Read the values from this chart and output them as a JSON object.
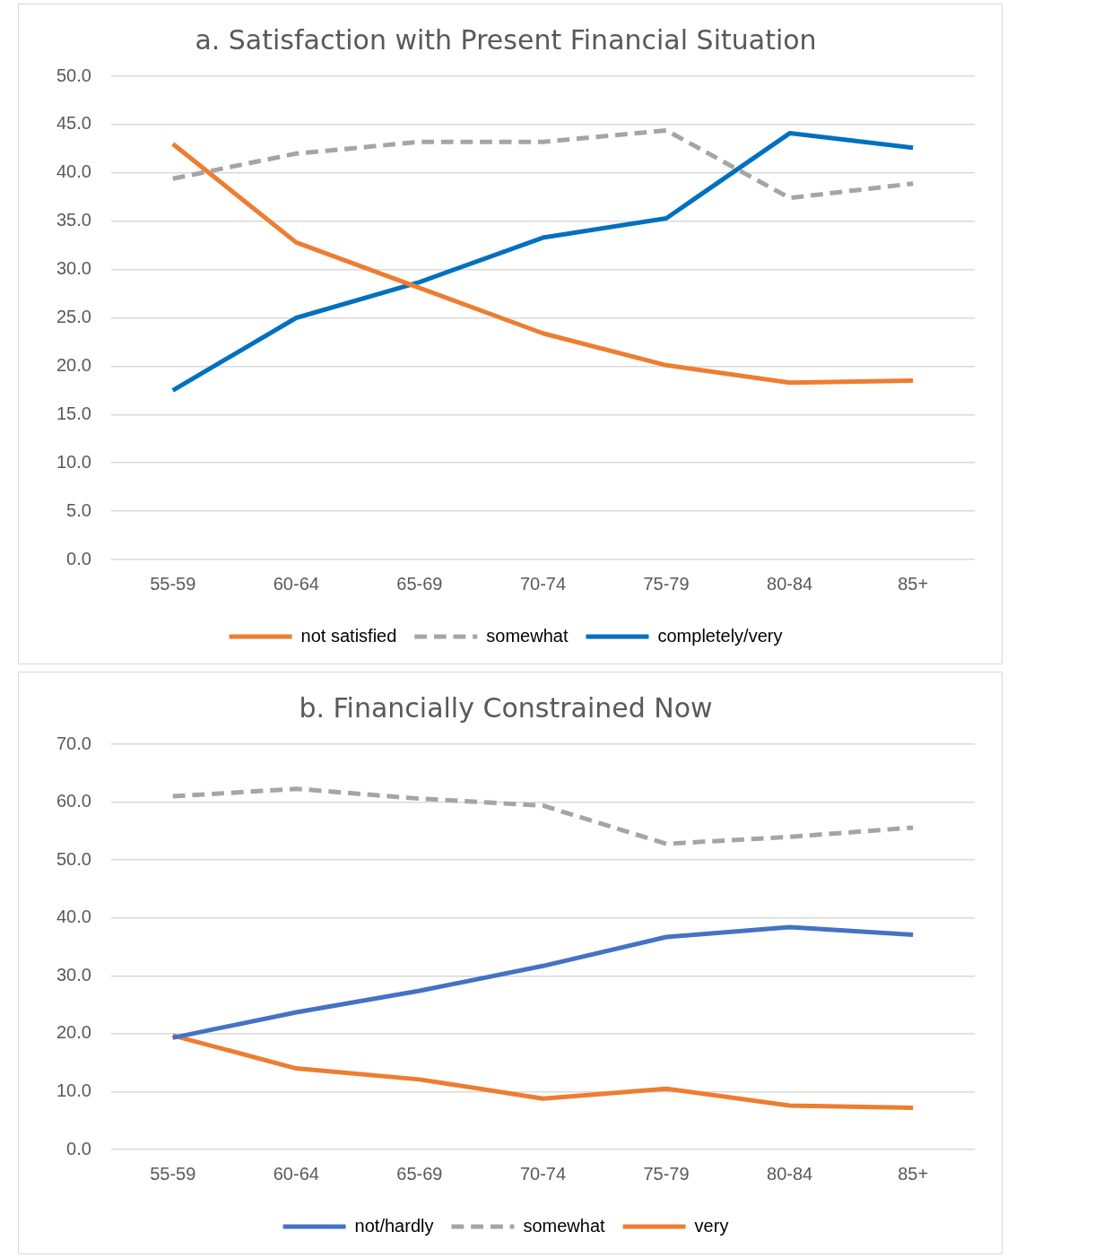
{
  "chart_data": [
    {
      "type": "line",
      "title": "a. Satisfaction with Present Financial Situation",
      "categories": [
        "55-59",
        "60-64",
        "65-69",
        "70-74",
        "75-79",
        "80-84",
        "85+"
      ],
      "ylim": [
        0,
        50
      ],
      "yticks": [
        {
          "value": 0,
          "label": "0.0"
        },
        {
          "value": 5,
          "label": "5.0"
        },
        {
          "value": 10,
          "label": "10.0"
        },
        {
          "value": 15,
          "label": "15.0"
        },
        {
          "value": 20,
          "label": "20.0"
        },
        {
          "value": 25,
          "label": "25.0"
        },
        {
          "value": 30,
          "label": "30.0"
        },
        {
          "value": 35,
          "label": "35.0"
        },
        {
          "value": 40,
          "label": "40.0"
        },
        {
          "value": 45,
          "label": "45.0"
        },
        {
          "value": 50,
          "label": "50.0"
        }
      ],
      "grid": "y",
      "legend": "bottom",
      "marker": "none",
      "series": [
        {
          "name": "not satisfied",
          "color": "#ed7d31",
          "line_style": "solid",
          "values": [
            43.0,
            32.8,
            28.1,
            23.4,
            20.1,
            18.3,
            18.5
          ]
        },
        {
          "name": "somewhat",
          "color": "#a5a5a5",
          "line_style": "dashed",
          "values": [
            39.4,
            42.0,
            43.2,
            43.2,
            44.4,
            37.4,
            38.9
          ]
        },
        {
          "name": "completely/very",
          "color": "#0070c0",
          "line_style": "solid",
          "values": [
            17.5,
            25.0,
            28.7,
            33.3,
            35.3,
            44.1,
            42.6
          ]
        }
      ]
    },
    {
      "type": "line",
      "title": "b. Financially Constrained Now",
      "categories": [
        "55-59",
        "60-64",
        "65-69",
        "70-74",
        "75-79",
        "80-84",
        "85+"
      ],
      "ylim": [
        0,
        70
      ],
      "yticks": [
        {
          "value": 0,
          "label": "0.0"
        },
        {
          "value": 10,
          "label": "10.0"
        },
        {
          "value": 20,
          "label": "20.0"
        },
        {
          "value": 30,
          "label": "30.0"
        },
        {
          "value": 40,
          "label": "40.0"
        },
        {
          "value": 50,
          "label": "50.0"
        },
        {
          "value": 60,
          "label": "60.0"
        },
        {
          "value": 70,
          "label": "70.0"
        }
      ],
      "grid": "y",
      "legend": "bottom",
      "marker": "none",
      "series": [
        {
          "name": "not/hardly",
          "color": "#4472c4",
          "line_style": "solid",
          "values": [
            19.3,
            23.7,
            27.4,
            31.7,
            36.7,
            38.4,
            37.1
          ]
        },
        {
          "name": "somewhat",
          "color": "#a5a5a5",
          "line_style": "dashed",
          "values": [
            61.0,
            62.3,
            60.6,
            59.4,
            52.8,
            54.0,
            55.6
          ]
        },
        {
          "name": "very",
          "color": "#ed7d31",
          "line_style": "solid",
          "values": [
            19.7,
            14.0,
            12.1,
            8.8,
            10.5,
            7.6,
            7.2
          ]
        }
      ]
    }
  ]
}
